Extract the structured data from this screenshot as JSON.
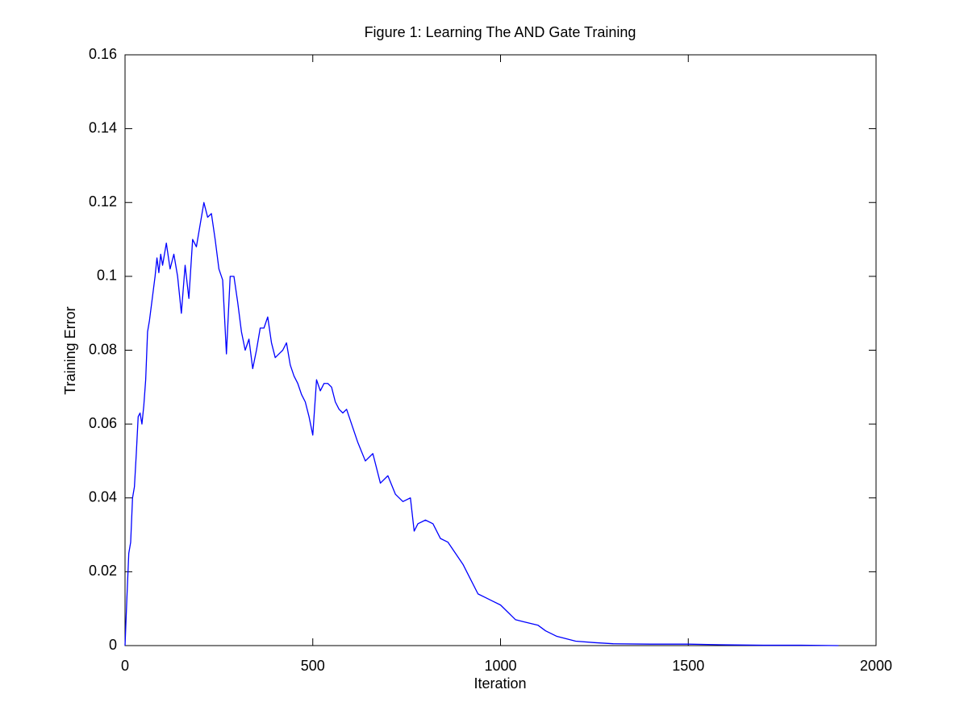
{
  "chart_data": {
    "type": "line",
    "title": "Figure 1: Learning The AND Gate Training",
    "x_label": "Iteration",
    "y_label": "Training Error",
    "xlim": [
      0,
      2000
    ],
    "xticks": [
      0,
      500,
      1000,
      1500,
      2000
    ],
    "ylim": [
      0,
      0.16
    ],
    "yticks": [
      0,
      0.02,
      0.04,
      0.06,
      0.08,
      0.1,
      0.12,
      0.14,
      0.16
    ],
    "x": [
      0,
      5,
      10,
      15,
      20,
      25,
      30,
      35,
      40,
      45,
      50,
      55,
      60,
      65,
      70,
      75,
      80,
      85,
      90,
      95,
      100,
      110,
      120,
      130,
      140,
      150,
      160,
      170,
      180,
      190,
      200,
      210,
      220,
      230,
      240,
      250,
      260,
      270,
      280,
      290,
      300,
      310,
      320,
      330,
      340,
      350,
      360,
      370,
      380,
      390,
      400,
      410,
      420,
      430,
      440,
      450,
      460,
      470,
      480,
      490,
      500,
      510,
      520,
      530,
      540,
      550,
      560,
      570,
      580,
      590,
      600,
      620,
      640,
      660,
      680,
      700,
      720,
      740,
      760,
      770,
      780,
      800,
      820,
      840,
      860,
      880,
      900,
      920,
      940,
      960,
      980,
      1000,
      1020,
      1040,
      1060,
      1080,
      1100,
      1120,
      1150,
      1200,
      1250,
      1300,
      1400,
      1500,
      1600,
      1700,
      1800,
      1900
    ],
    "series": [
      {
        "name": "Training Error",
        "color": "#0000ff",
        "values": [
          0,
          0.013,
          0.025,
          0.028,
          0.04,
          0.043,
          0.052,
          0.062,
          0.063,
          0.06,
          0.065,
          0.072,
          0.085,
          0.088,
          0.092,
          0.096,
          0.1,
          0.105,
          0.101,
          0.106,
          0.103,
          0.109,
          0.102,
          0.106,
          0.1,
          0.09,
          0.103,
          0.094,
          0.11,
          0.108,
          0.114,
          0.12,
          0.116,
          0.117,
          0.11,
          0.102,
          0.099,
          0.079,
          0.1,
          0.1,
          0.093,
          0.085,
          0.08,
          0.083,
          0.075,
          0.08,
          0.086,
          0.086,
          0.089,
          0.082,
          0.078,
          0.079,
          0.08,
          0.082,
          0.076,
          0.073,
          0.071,
          0.068,
          0.066,
          0.062,
          0.057,
          0.072,
          0.069,
          0.071,
          0.071,
          0.07,
          0.066,
          0.064,
          0.063,
          0.064,
          0.061,
          0.055,
          0.05,
          0.052,
          0.044,
          0.046,
          0.041,
          0.039,
          0.04,
          0.031,
          0.033,
          0.034,
          0.033,
          0.029,
          0.028,
          0.025,
          0.022,
          0.018,
          0.014,
          0.013,
          0.012,
          0.011,
          0.009,
          0.007,
          0.0065,
          0.006,
          0.0055,
          0.004,
          0.0025,
          0.0012,
          0.0008,
          0.0005,
          0.0004,
          0.0004,
          0.0002,
          0.0001,
          0.0001,
          0
        ]
      }
    ]
  }
}
